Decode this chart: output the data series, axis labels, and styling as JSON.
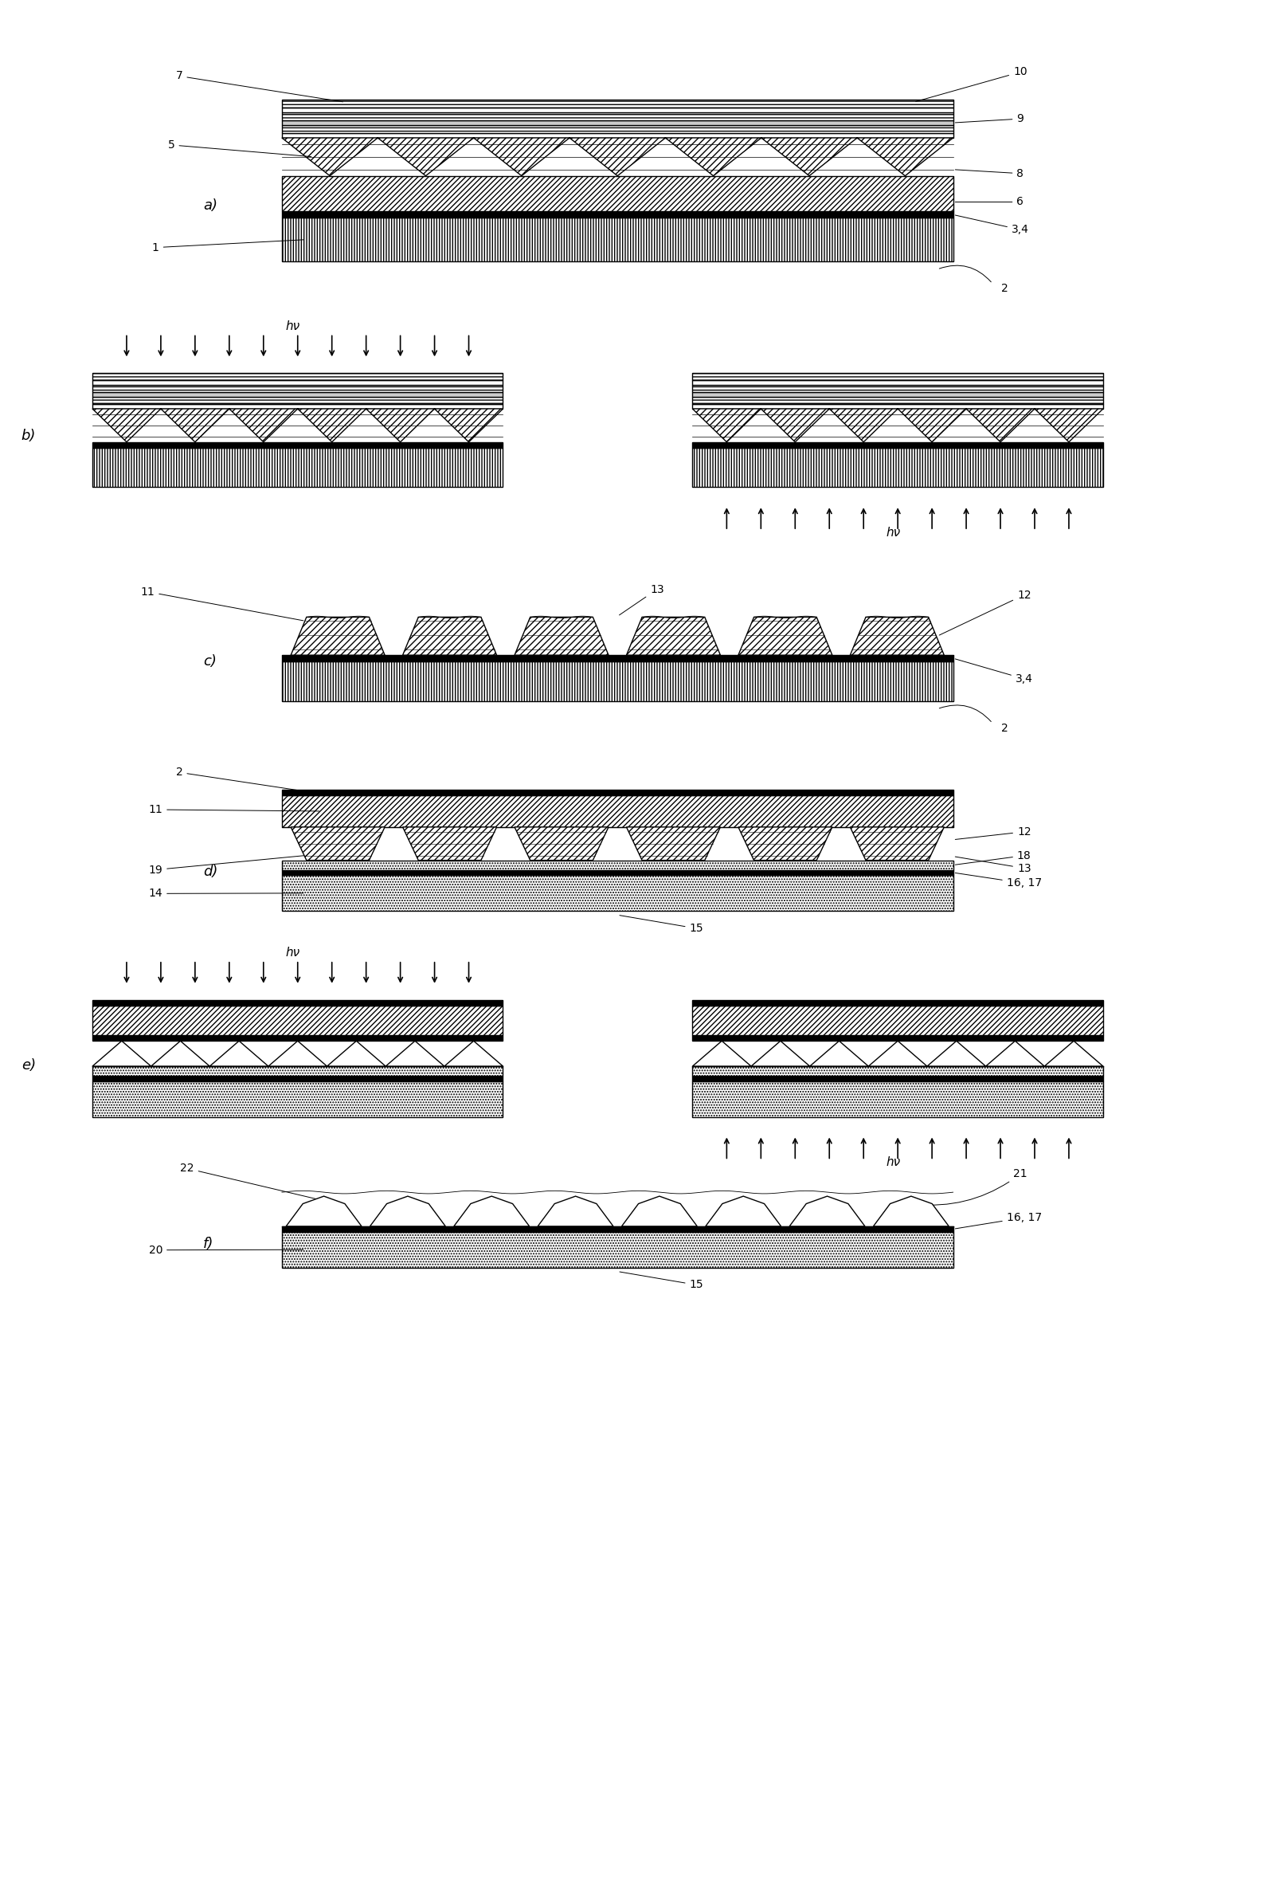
{
  "bg_color": "#ffffff",
  "fig_width": 16.02,
  "fig_height": 23.63,
  "labels": {
    "a": "a)",
    "b": "b)",
    "c": "c)",
    "d": "d)",
    "e": "e)",
    "f": "f)"
  }
}
